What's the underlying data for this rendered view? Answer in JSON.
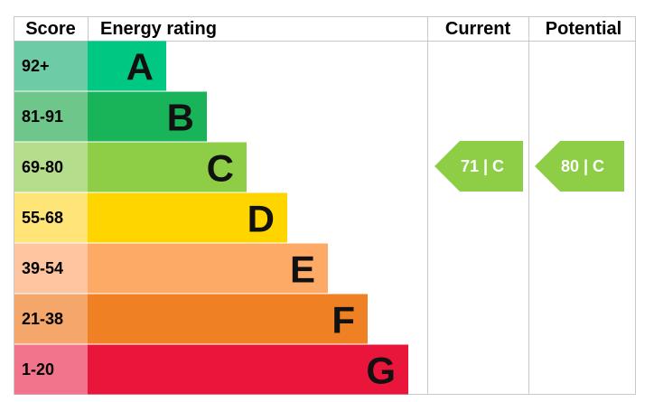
{
  "header": {
    "score": "Score",
    "rating": "Energy rating",
    "current": "Current",
    "potential": "Potential"
  },
  "rows": [
    {
      "score": "92+",
      "band": "A"
    },
    {
      "score": "81-91",
      "band": "B"
    },
    {
      "score": "69-80",
      "band": "C"
    },
    {
      "score": "55-68",
      "band": "D"
    },
    {
      "score": "39-54",
      "band": "E"
    },
    {
      "score": "21-38",
      "band": "F"
    },
    {
      "score": "1-20",
      "band": "G"
    }
  ],
  "current": "71 | C",
  "potential": "80 | C"
}
